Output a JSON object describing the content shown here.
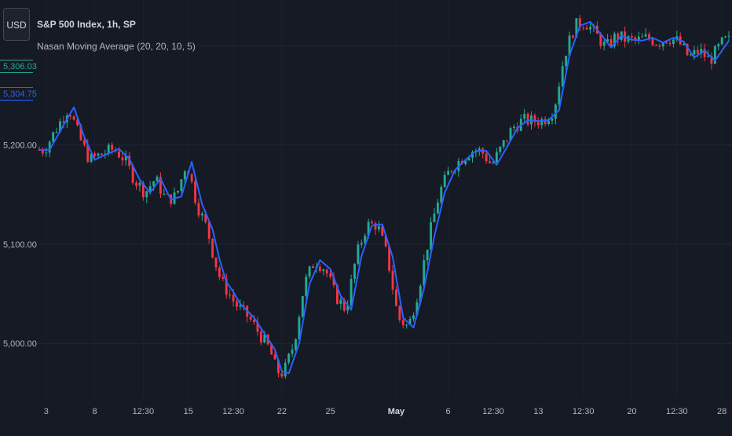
{
  "header": {
    "currency": "USD",
    "symbol": "S&P 500 Index, 1h, SP",
    "indicator": "Nasan Moving Average (20, 20, 10, 5)"
  },
  "price_tags": {
    "last_price": "5,306.03",
    "ma_value": "5,304.75",
    "last_color": "#22ab94",
    "ma_color": "#2962ff"
  },
  "colors": {
    "background": "#161a25",
    "grid": "#232733",
    "up": "#22ab94",
    "down": "#f23645",
    "ma_line": "#2962ff",
    "axis_text": "#b2b5be"
  },
  "chart_data": {
    "type": "line",
    "title": "",
    "ylim": [
      4944,
      5346
    ],
    "y_ticks": [
      5000,
      5100,
      5200
    ],
    "y_tick_labels": [
      "5,000.00",
      "5,100.00",
      "5,200.00"
    ],
    "x_tick_labels": [
      "3",
      "8",
      "12:30",
      "15",
      "12:30",
      "22",
      "25",
      "May",
      "6",
      "12:30",
      "13",
      "12:30",
      "20",
      "12:30",
      "28"
    ],
    "x_tick_bold": [
      false,
      false,
      false,
      false,
      false,
      false,
      false,
      true,
      false,
      false,
      false,
      false,
      false,
      false,
      false
    ],
    "x_tick_index": [
      2,
      16,
      30,
      43,
      56,
      70,
      84,
      103,
      118,
      131,
      144,
      157,
      171,
      184,
      197
    ],
    "series": [
      {
        "name": "Nasan Moving Average (20, 20, 10, 5)",
        "x_index": [
          0,
          3,
          7,
          10,
          13,
          16,
          19,
          23,
          26,
          29,
          32,
          35,
          38,
          41,
          44,
          47,
          50,
          52,
          54,
          56,
          58,
          60,
          62,
          65,
          68,
          70,
          72,
          75,
          78,
          81,
          84,
          87,
          90,
          93,
          96,
          99,
          102,
          105,
          108,
          111,
          114,
          117,
          120,
          123,
          126,
          129,
          132,
          135,
          138,
          141,
          144,
          147,
          150,
          153,
          156,
          159,
          162,
          165,
          168,
          171,
          174,
          177,
          180,
          183,
          186,
          189,
          192,
          195,
          199
        ],
        "values": [
          5195,
          5195,
          5220,
          5238,
          5208,
          5185,
          5190,
          5196,
          5186,
          5165,
          5152,
          5166,
          5145,
          5148,
          5183,
          5140,
          5115,
          5085,
          5062,
          5052,
          5040,
          5033,
          5026,
          5010,
          4994,
          4972,
          4970,
          5000,
          5060,
          5084,
          5075,
          5048,
          5034,
          5088,
          5119,
          5120,
          5087,
          5026,
          5016,
          5055,
          5108,
          5152,
          5175,
          5185,
          5194,
          5194,
          5180,
          5198,
          5217,
          5225,
          5224,
          5225,
          5235,
          5290,
          5320,
          5324,
          5312,
          5298,
          5310,
          5306,
          5305,
          5308,
          5303,
          5308,
          5304,
          5288,
          5295,
          5285,
          5305
        ]
      }
    ],
    "candles_up_color": "#22ab94",
    "candles_down_color": "#f23645"
  }
}
